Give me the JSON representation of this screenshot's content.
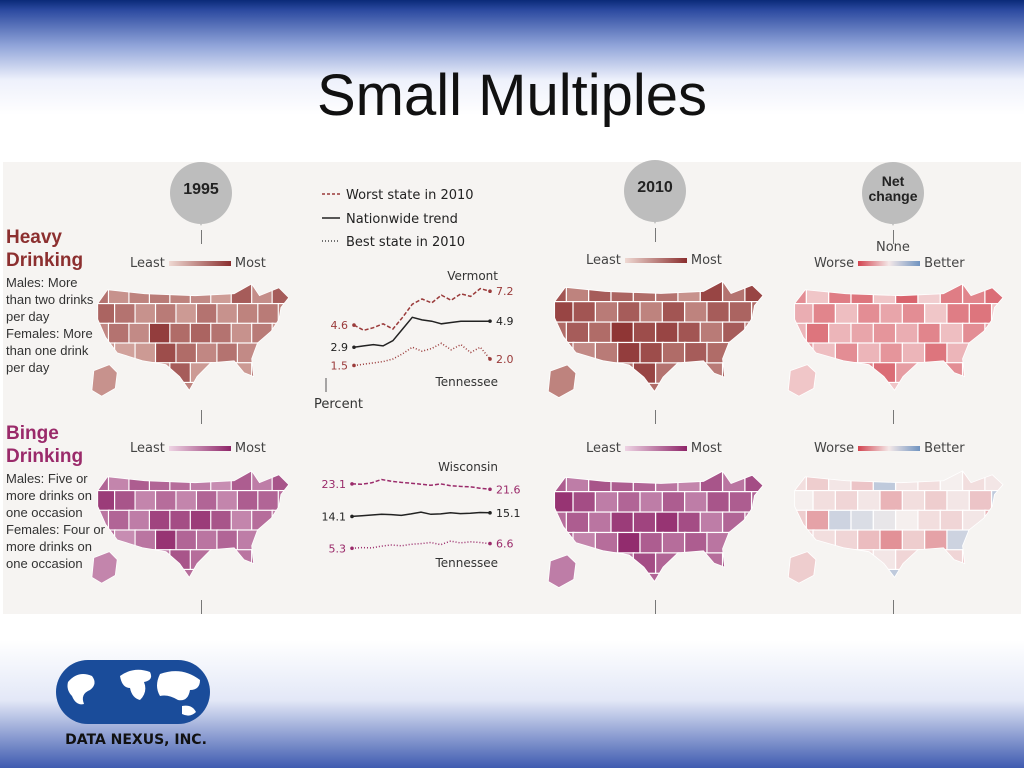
{
  "slide": {
    "title": "Small Multiples"
  },
  "callouts": {
    "y1995": "1995",
    "y2010": "2010",
    "net": "Net change"
  },
  "legend": {
    "worst": "Worst state in 2010",
    "nation": "Nationwide trend",
    "best": "Best state in 2010"
  },
  "scales": {
    "least": "Least",
    "most": "Most",
    "worse": "Worse",
    "none": "None",
    "better": "Better"
  },
  "rows": {
    "heavy": {
      "title": "Heavy Drinking",
      "desc": "Males: More than two drinks per day Females: More than one drink per day"
    },
    "binge": {
      "title": "Binge Drinking",
      "desc": "Males: Five or more drinks on one occasion Females: Four or more drinks on one occasion"
    }
  },
  "colors": {
    "heavy_dark": "#8a2e2e",
    "heavy_light": "#e8c8c0",
    "binge_dark": "#8e2468",
    "binge_light": "#e6c6da",
    "worse": "#d24450",
    "better": "#6f93c0"
  },
  "chart_data": [
    {
      "type": "line",
      "title": "Heavy Drinking",
      "xlabel": "",
      "ylabel": "Percent",
      "series": [
        {
          "name": "Worst state in 2010",
          "label": "Vermont",
          "style": "dashed",
          "start": "4.6",
          "end": "7.2",
          "values": [
            4.6,
            4.2,
            4.4,
            4.7,
            4.3,
            5.2,
            6.2,
            6.6,
            6.3,
            6.9,
            6.5,
            7.0,
            6.8,
            7.4,
            7.2
          ]
        },
        {
          "name": "Nationwide trend",
          "style": "solid",
          "start": "2.9",
          "end": "4.9",
          "values": [
            2.9,
            3.0,
            3.1,
            3.0,
            3.4,
            4.3,
            5.2,
            5.0,
            4.9,
            4.7,
            4.8,
            4.9,
            4.9,
            4.9,
            4.9
          ]
        },
        {
          "name": "Best state in 2010",
          "label": "Tennessee",
          "style": "dotted",
          "start": "1.5",
          "end": "2.0",
          "values": [
            1.5,
            1.6,
            1.7,
            1.8,
            2.0,
            2.4,
            2.9,
            2.6,
            2.8,
            3.2,
            2.7,
            3.1,
            2.5,
            2.9,
            2.0
          ]
        }
      ],
      "ylim": [
        1,
        7.6
      ]
    },
    {
      "type": "line",
      "title": "Binge Drinking",
      "xlabel": "",
      "ylabel": "",
      "series": [
        {
          "name": "Worst state in 2010",
          "label": "Wisconsin",
          "style": "dashed",
          "start": "23.1",
          "end": "21.6",
          "values": [
            23.1,
            23.0,
            23.4,
            24.3,
            23.8,
            23.5,
            23.3,
            23.0,
            22.7,
            23.1,
            22.6,
            22.4,
            22.3,
            21.9,
            21.6
          ]
        },
        {
          "name": "Nationwide trend",
          "style": "solid",
          "start": "14.1",
          "end": "15.1",
          "values": [
            14.1,
            14.3,
            14.5,
            14.7,
            14.6,
            14.4,
            14.8,
            15.3,
            14.7,
            14.8,
            15.1,
            14.9,
            15.0,
            15.2,
            15.1
          ]
        },
        {
          "name": "Best state in 2010",
          "label": "Tennessee",
          "style": "dotted",
          "start": "5.3",
          "end": "6.6",
          "values": [
            5.3,
            5.5,
            5.4,
            5.9,
            6.2,
            6.0,
            6.4,
            6.6,
            6.9,
            6.3,
            7.3,
            6.8,
            7.1,
            6.9,
            6.6
          ]
        }
      ],
      "ylim": [
        4,
        25
      ]
    }
  ],
  "maps": {
    "heavy_1995": [
      0.55,
      0.4,
      0.7,
      0.35,
      0.9,
      0.3,
      0.45,
      0.6,
      0.25,
      0.5,
      0.65,
      0.3,
      0.45,
      0.55,
      0.8,
      0.4,
      0.35,
      0.6,
      0.28,
      0.5,
      0.42,
      0.7,
      0.3,
      0.55,
      0.38
    ],
    "heavy_2010": [
      0.75,
      0.6,
      0.85,
      0.45,
      0.95,
      0.55,
      0.7,
      0.8,
      0.4,
      0.65,
      0.85,
      0.5,
      0.6,
      0.75,
      0.9,
      0.55,
      0.5,
      0.8,
      0.35,
      0.7,
      0.6,
      0.85,
      0.45,
      0.7,
      0.55
    ],
    "heavy_net": [
      0.55,
      0.3,
      0.75,
      0.2,
      0.4,
      0.45,
      0.65,
      0.5,
      0.25,
      0.7,
      0.35,
      0.55,
      0.2,
      0.6,
      0.3,
      0.8,
      0.25,
      0.5,
      0.15,
      0.55,
      0.3,
      0.65,
      0.4,
      0.7,
      0.6
    ],
    "binge_1995": [
      0.6,
      0.45,
      0.7,
      0.4,
      0.8,
      0.55,
      0.65,
      0.75,
      0.35,
      0.6,
      0.85,
      0.5,
      0.55,
      0.7,
      0.9,
      0.45,
      0.4,
      0.6,
      0.35,
      0.55,
      0.5,
      0.65,
      0.4,
      0.6,
      0.45
    ],
    "binge_2010": [
      0.65,
      0.5,
      0.75,
      0.45,
      0.85,
      0.6,
      0.7,
      0.8,
      0.4,
      0.65,
      0.9,
      0.55,
      0.6,
      0.75,
      0.95,
      0.5,
      0.45,
      0.65,
      0.4,
      0.6,
      0.55,
      0.7,
      0.45,
      0.65,
      0.5
    ],
    "binge_net": [
      0.1,
      -0.15,
      0.05,
      0.2,
      -0.1,
      0.15,
      0.05,
      -0.05,
      0.1,
      0.25,
      0.0,
      0.15,
      -0.2,
      0.1,
      0.3,
      0.05,
      0.15,
      0.55,
      0.1,
      0.05,
      0.2,
      0.0,
      0.35,
      0.45,
      0.1
    ]
  },
  "logo": {
    "text": "DATA NEXUS, INC."
  }
}
